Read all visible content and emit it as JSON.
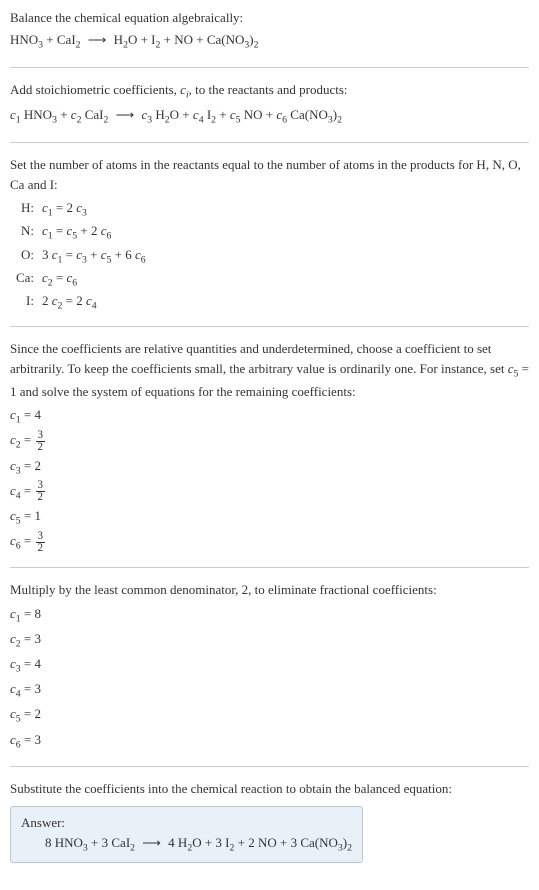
{
  "section1": {
    "title": "Balance the chemical equation algebraically:",
    "equation": "HNO<sub>3</sub> + CaI<sub>2</sub> <span class='arrow'>⟶</span> H<sub>2</sub>O + I<sub>2</sub> + NO + Ca(NO<sub>3</sub>)<sub>2</sub>"
  },
  "section2": {
    "title": "Add stoichiometric coefficients, <span class='italic'>c<sub>i</sub></span>, to the reactants and products:",
    "equation": "<span class='italic'>c</span><sub>1</sub> HNO<sub>3</sub> + <span class='italic'>c</span><sub>2</sub> CaI<sub>2</sub> <span class='arrow'>⟶</span> <span class='italic'>c</span><sub>3</sub> H<sub>2</sub>O + <span class='italic'>c</span><sub>4</sub> I<sub>2</sub> + <span class='italic'>c</span><sub>5</sub> NO + <span class='italic'>c</span><sub>6</sub> Ca(NO<sub>3</sub>)<sub>2</sub>"
  },
  "section3": {
    "title": "Set the number of atoms in the reactants equal to the number of atoms in the products for H, N, O, Ca and I:",
    "atoms": [
      {
        "label": "H:",
        "eqn": "<span class='italic'>c</span><sub>1</sub> = 2 <span class='italic'>c</span><sub>3</sub>"
      },
      {
        "label": "N:",
        "eqn": "<span class='italic'>c</span><sub>1</sub> = <span class='italic'>c</span><sub>5</sub> + 2 <span class='italic'>c</span><sub>6</sub>"
      },
      {
        "label": "O:",
        "eqn": "3 <span class='italic'>c</span><sub>1</sub> = <span class='italic'>c</span><sub>3</sub> + <span class='italic'>c</span><sub>5</sub> + 6 <span class='italic'>c</span><sub>6</sub>"
      },
      {
        "label": "Ca:",
        "eqn": "<span class='italic'>c</span><sub>2</sub> = <span class='italic'>c</span><sub>6</sub>"
      },
      {
        "label": "I:",
        "eqn": "2 <span class='italic'>c</span><sub>2</sub> = 2 <span class='italic'>c</span><sub>4</sub>"
      }
    ]
  },
  "section4": {
    "title": "Since the coefficients are relative quantities and underdetermined, choose a coefficient to set arbitrarily. To keep the coefficients small, the arbitrary value is ordinarily one. For instance, set <span class='italic'>c</span><sub>5</sub> = 1 and solve the system of equations for the remaining coefficients:",
    "coefs": [
      {
        "lhs": "<span class='italic'>c</span><sub>1</sub>",
        "rhs": "4"
      },
      {
        "lhs": "<span class='italic'>c</span><sub>2</sub>",
        "rhs": "<span class='frac'><span class='num'>3</span><span class='den'>2</span></span>"
      },
      {
        "lhs": "<span class='italic'>c</span><sub>3</sub>",
        "rhs": "2"
      },
      {
        "lhs": "<span class='italic'>c</span><sub>4</sub>",
        "rhs": "<span class='frac'><span class='num'>3</span><span class='den'>2</span></span>"
      },
      {
        "lhs": "<span class='italic'>c</span><sub>5</sub>",
        "rhs": "1"
      },
      {
        "lhs": "<span class='italic'>c</span><sub>6</sub>",
        "rhs": "<span class='frac'><span class='num'>3</span><span class='den'>2</span></span>"
      }
    ]
  },
  "section5": {
    "title": "Multiply by the least common denominator, 2, to eliminate fractional coefficients:",
    "coefs": [
      {
        "lhs": "<span class='italic'>c</span><sub>1</sub>",
        "rhs": "8"
      },
      {
        "lhs": "<span class='italic'>c</span><sub>2</sub>",
        "rhs": "3"
      },
      {
        "lhs": "<span class='italic'>c</span><sub>3</sub>",
        "rhs": "4"
      },
      {
        "lhs": "<span class='italic'>c</span><sub>4</sub>",
        "rhs": "3"
      },
      {
        "lhs": "<span class='italic'>c</span><sub>5</sub>",
        "rhs": "2"
      },
      {
        "lhs": "<span class='italic'>c</span><sub>6</sub>",
        "rhs": "3"
      }
    ]
  },
  "section6": {
    "title": "Substitute the coefficients into the chemical reaction to obtain the balanced equation:",
    "answer_label": "Answer:",
    "answer_eqn": "8 HNO<sub>3</sub> + 3 CaI<sub>2</sub> <span class='arrow'>⟶</span> 4 H<sub>2</sub>O + 3 I<sub>2</sub> + 2 NO + 3 Ca(NO<sub>3</sub>)<sub>2</sub>"
  }
}
